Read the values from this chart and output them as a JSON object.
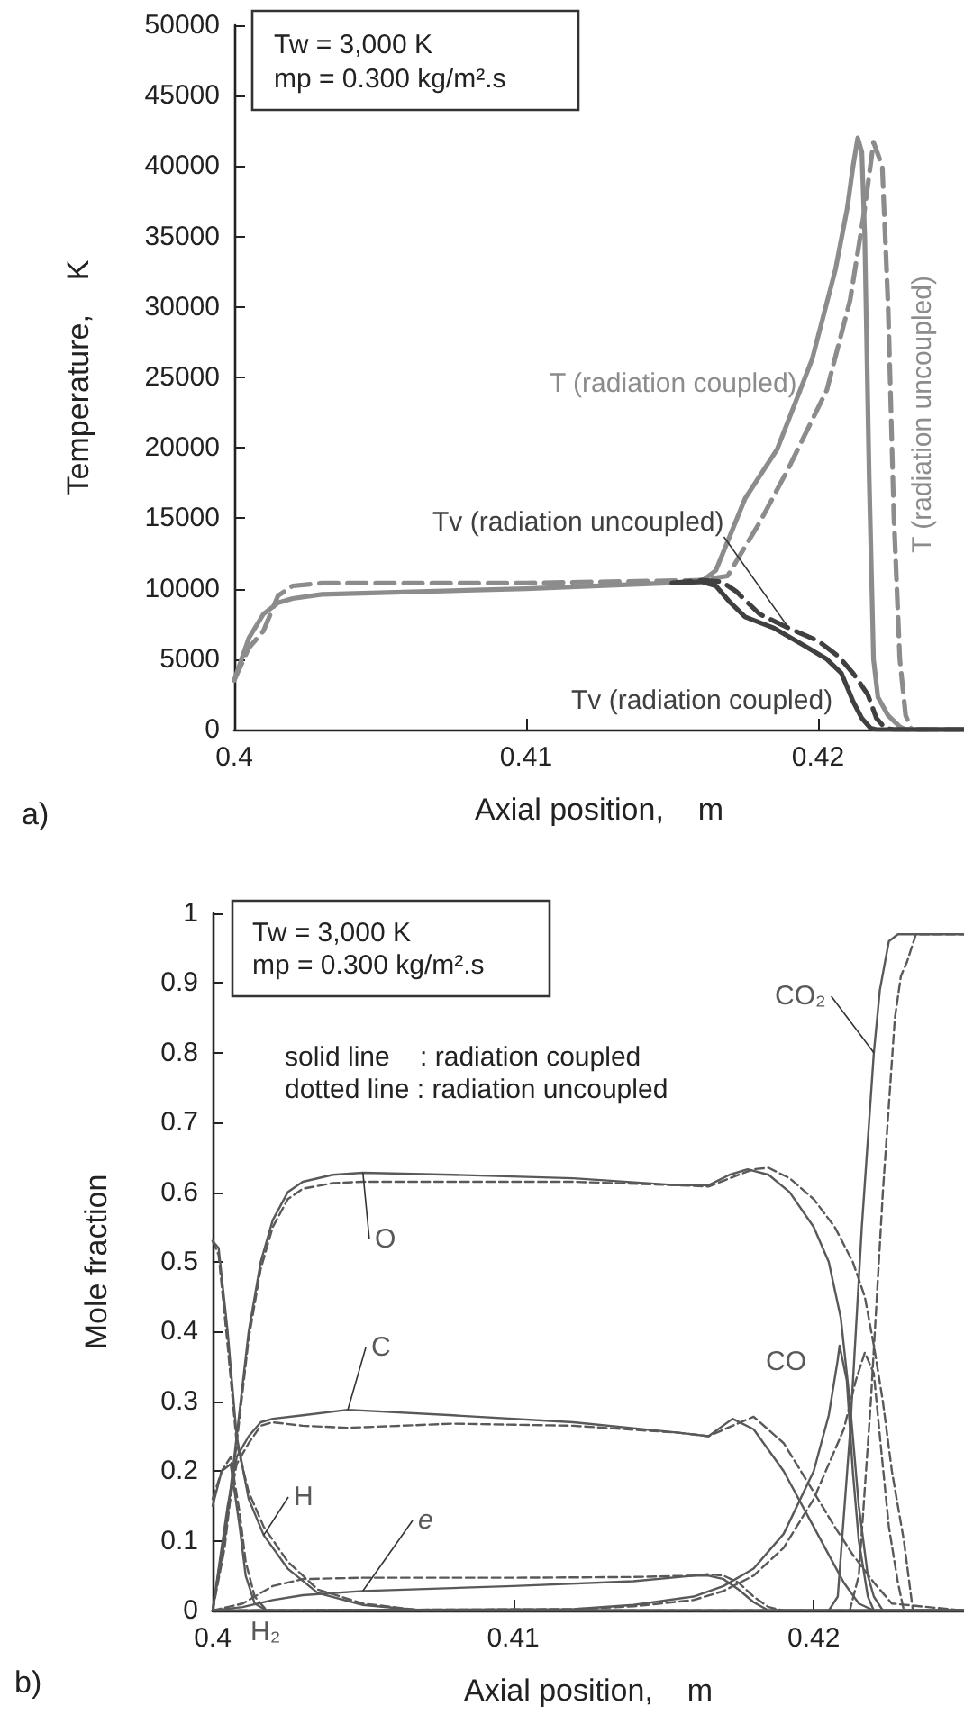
{
  "chart_data": [
    {
      "type": "line",
      "xlabel": "Axial position,    m",
      "ylabel": "Temperature,    K",
      "xlim": [
        0.4,
        0.425
      ],
      "xticks": [
        0.4,
        0.41,
        0.42
      ],
      "ylim": [
        0,
        50000
      ],
      "yticks": [
        0,
        5000,
        10000,
        15000,
        20000,
        25000,
        30000,
        35000,
        40000,
        45000,
        50000
      ],
      "grid": false,
      "legend": false,
      "annotations": [
        "Tw = 3,000 K",
        "mp = 0.300 kg/m².s",
        "a)"
      ],
      "series": [
        {
          "name": "T (radiation uncoupled)",
          "color": "#8c8c8c",
          "line_style": "dashed",
          "x": [
            0.4,
            0.4005,
            0.401,
            0.4015,
            0.402,
            0.403,
            0.41,
            0.416,
            0.4169,
            0.418,
            0.419,
            0.4203,
            0.4211,
            0.4216,
            0.4219,
            0.4222,
            0.4224,
            0.4226,
            0.4228,
            0.423,
            0.4232,
            0.425
          ],
          "values": [
            3500,
            5800,
            7000,
            9500,
            10200,
            10400,
            10400,
            10600,
            10900,
            14700,
            18600,
            24100,
            30500,
            37000,
            41700,
            40000,
            30000,
            15000,
            5000,
            1000,
            0,
            0
          ]
        },
        {
          "name": "T (radiation coupled)",
          "color": "#8c8c8c",
          "line_style": "solid",
          "x": [
            0.4,
            0.4005,
            0.401,
            0.4015,
            0.402,
            0.403,
            0.41,
            0.416,
            0.4165,
            0.4175,
            0.4186,
            0.4198,
            0.4206,
            0.421,
            0.4212,
            0.42136,
            0.4215,
            0.4216,
            0.42175,
            0.4219,
            0.42205,
            0.4224,
            0.4228,
            0.423,
            0.425
          ],
          "values": [
            3500,
            6500,
            8200,
            9000,
            9300,
            9600,
            10000,
            10500,
            11300,
            16400,
            19900,
            26300,
            32700,
            37000,
            40000,
            42000,
            41000,
            35000,
            18000,
            5000,
            2300,
            1000,
            200,
            0,
            0
          ]
        },
        {
          "name": "Tv (radiation coupled)",
          "color": "#404040",
          "line_style": "solid",
          "x": [
            0.415,
            0.416,
            0.4165,
            0.417,
            0.4175,
            0.4185,
            0.4195,
            0.4203,
            0.4208,
            0.4212,
            0.4215,
            0.4218,
            0.422,
            0.425
          ],
          "values": [
            10400,
            10500,
            10200,
            9000,
            8000,
            7200,
            6000,
            5000,
            4000,
            2000,
            800,
            100,
            0,
            0
          ]
        },
        {
          "name": "Tv (radiation uncoupled)",
          "color": "#404040",
          "line_style": "dashed",
          "x": [
            0.415,
            0.416,
            0.4167,
            0.4172,
            0.418,
            0.419,
            0.42,
            0.4207,
            0.4212,
            0.4217,
            0.422,
            0.4223,
            0.4226,
            0.425
          ],
          "values": [
            10400,
            10600,
            10500,
            9800,
            8200,
            7200,
            6300,
            5200,
            4000,
            2500,
            800,
            100,
            0,
            0
          ]
        }
      ]
    },
    {
      "type": "line",
      "xlabel": "Axial position,    m",
      "ylabel": "Mole fraction",
      "xlim": [
        0.4,
        0.425
      ],
      "xticks": [
        0.4,
        0.41,
        0.42
      ],
      "ylim": [
        0,
        1
      ],
      "yticks": [
        0,
        0.1,
        0.2,
        0.3,
        0.4,
        0.5,
        0.6,
        0.7,
        0.8,
        0.9,
        1
      ],
      "grid": false,
      "legend": false,
      "annotations": [
        "Tw = 3,000 K",
        "mp = 0.300 kg/m².s",
        "solid line    : radiation coupled",
        "dotted line : radiation uncoupled",
        "b)"
      ],
      "series": [
        {
          "name": "O",
          "color": "#595959",
          "line_style": "solid",
          "x": [
            0.4,
            0.4004,
            0.4008,
            0.4012,
            0.4016,
            0.402,
            0.4025,
            0.403,
            0.404,
            0.405,
            0.408,
            0.412,
            0.4155,
            0.4165,
            0.4172,
            0.4178,
            0.4185,
            0.4192,
            0.42,
            0.4205,
            0.4209,
            0.4212,
            0.4215,
            0.4218,
            0.422,
            0.4223,
            0.425
          ],
          "values": [
            0,
            0.1,
            0.25,
            0.4,
            0.5,
            0.56,
            0.6,
            0.615,
            0.625,
            0.628,
            0.625,
            0.62,
            0.61,
            0.61,
            0.625,
            0.633,
            0.625,
            0.6,
            0.55,
            0.5,
            0.42,
            0.3,
            0.15,
            0.05,
            0.02,
            0,
            0
          ]
        },
        {
          "color": "#595959",
          "line_style": "dashed",
          "x": [
            0.4,
            0.4004,
            0.4008,
            0.4012,
            0.4016,
            0.402,
            0.4025,
            0.403,
            0.404,
            0.405,
            0.408,
            0.412,
            0.4155,
            0.4165,
            0.4172,
            0.418,
            0.4185,
            0.4192,
            0.42,
            0.4207,
            0.4213,
            0.4217,
            0.422,
            0.4223,
            0.4226,
            0.423,
            0.4233,
            0.425
          ],
          "values": [
            0,
            0.09,
            0.24,
            0.39,
            0.49,
            0.55,
            0.59,
            0.605,
            0.613,
            0.615,
            0.615,
            0.615,
            0.61,
            0.608,
            0.62,
            0.633,
            0.635,
            0.62,
            0.59,
            0.55,
            0.5,
            0.45,
            0.38,
            0.3,
            0.2,
            0.1,
            0,
            0
          ]
        },
        {
          "name": "C",
          "color": "#595959",
          "line_style": "solid",
          "x": [
            0.4,
            0.4005,
            0.4008,
            0.4012,
            0.4016,
            0.402,
            0.403,
            0.4045,
            0.408,
            0.412,
            0.4155,
            0.4165,
            0.4173,
            0.418,
            0.419,
            0.42,
            0.4205,
            0.421,
            0.4215,
            0.422,
            0.425
          ],
          "values": [
            0,
            0.15,
            0.22,
            0.25,
            0.27,
            0.275,
            0.28,
            0.288,
            0.28,
            0.27,
            0.255,
            0.25,
            0.275,
            0.26,
            0.2,
            0.12,
            0.08,
            0.04,
            0.01,
            0,
            0
          ]
        },
        {
          "color": "#595959",
          "line_style": "dashed",
          "x": [
            0.4,
            0.4005,
            0.4008,
            0.4012,
            0.4016,
            0.402,
            0.403,
            0.4045,
            0.408,
            0.412,
            0.4155,
            0.4165,
            0.4173,
            0.418,
            0.419,
            0.42,
            0.4207,
            0.4213,
            0.422,
            0.4226,
            0.425
          ],
          "values": [
            0,
            0.14,
            0.21,
            0.24,
            0.265,
            0.27,
            0.265,
            0.262,
            0.268,
            0.265,
            0.255,
            0.25,
            0.265,
            0.278,
            0.24,
            0.17,
            0.12,
            0.08,
            0.04,
            0.01,
            0
          ]
        },
        {
          "name": "CO",
          "color": "#595959",
          "line_style": "solid",
          "x": [
            0.4,
            0.412,
            0.414,
            0.416,
            0.417,
            0.418,
            0.419,
            0.42,
            0.4205,
            0.4208,
            0.42086,
            0.4211,
            0.4213,
            0.4215,
            0.4218,
            0.422,
            0.425
          ],
          "values": [
            0,
            0.002,
            0.008,
            0.02,
            0.035,
            0.06,
            0.11,
            0.2,
            0.28,
            0.36,
            0.38,
            0.33,
            0.2,
            0.1,
            0.02,
            0,
            0
          ]
        },
        {
          "color": "#595959",
          "line_style": "dashed",
          "x": [
            0.4,
            0.412,
            0.414,
            0.416,
            0.417,
            0.418,
            0.419,
            0.42,
            0.421,
            0.4214,
            0.4217,
            0.422,
            0.4222,
            0.4225,
            0.4228,
            0.423,
            0.425
          ],
          "values": [
            0,
            0.002,
            0.006,
            0.015,
            0.028,
            0.05,
            0.09,
            0.16,
            0.26,
            0.33,
            0.37,
            0.34,
            0.25,
            0.12,
            0.04,
            0,
            0
          ]
        },
        {
          "name": "CO₂",
          "color": "#595959",
          "line_style": "solid",
          "x": [
            0.4,
            0.4205,
            0.4208,
            0.4212,
            0.4216,
            0.422,
            0.4222,
            0.4225,
            0.4228,
            0.425
          ],
          "values": [
            0,
            0,
            0.02,
            0.25,
            0.55,
            0.8,
            0.89,
            0.96,
            0.97,
            0.97
          ]
        },
        {
          "color": "#595959",
          "line_style": "dashed",
          "x": [
            0.4,
            0.4212,
            0.4215,
            0.4219,
            0.4223,
            0.4227,
            0.4229,
            0.4231,
            0.4234,
            0.425
          ],
          "values": [
            0,
            0,
            0.05,
            0.3,
            0.6,
            0.85,
            0.91,
            0.93,
            0.97,
            0.97
          ]
        },
        {
          "name": "H",
          "color": "#595959",
          "line_style": "solid",
          "x": [
            0.4,
            0.4002,
            0.4005,
            0.4008,
            0.4012,
            0.4017,
            0.4025,
            0.4035,
            0.405,
            0.407,
            0.425
          ],
          "values": [
            0.53,
            0.52,
            0.4,
            0.25,
            0.16,
            0.108,
            0.06,
            0.025,
            0.008,
            0,
            0
          ]
        },
        {
          "color": "#595959",
          "line_style": "dashed",
          "x": [
            0.4,
            0.4002,
            0.4005,
            0.4008,
            0.4012,
            0.4017,
            0.4025,
            0.4035,
            0.405,
            0.407,
            0.425
          ],
          "values": [
            0.53,
            0.51,
            0.38,
            0.24,
            0.17,
            0.12,
            0.07,
            0.03,
            0.01,
            0,
            0
          ]
        },
        {
          "name": "H₂",
          "color": "#595959",
          "line_style": "solid",
          "x": [
            0.4,
            0.4003,
            0.4006,
            0.4009,
            0.4011,
            0.4014,
            0.4018,
            0.425
          ],
          "values": [
            0.15,
            0.2,
            0.21,
            0.12,
            0.05,
            0.01,
            0,
            0
          ]
        },
        {
          "color": "#595959",
          "line_style": "dashed",
          "x": [
            0.4,
            0.4003,
            0.4006,
            0.4009,
            0.4011,
            0.4014,
            0.4018,
            0.425
          ],
          "values": [
            0.16,
            0.2,
            0.22,
            0.14,
            0.07,
            0.02,
            0,
            0
          ]
        },
        {
          "name": "e",
          "color": "#595959",
          "line_style": "solid",
          "x": [
            0.4,
            0.401,
            0.402,
            0.403,
            0.405,
            0.41,
            0.414,
            0.416,
            0.4165,
            0.417,
            0.4175,
            0.418,
            0.4185,
            0.425
          ],
          "values": [
            0,
            0.005,
            0.015,
            0.022,
            0.028,
            0.035,
            0.042,
            0.05,
            0.05,
            0.045,
            0.03,
            0.012,
            0,
            0
          ]
        },
        {
          "color": "#595959",
          "line_style": "dashed",
          "x": [
            0.4,
            0.401,
            0.402,
            0.403,
            0.405,
            0.41,
            0.414,
            0.416,
            0.4165,
            0.417,
            0.4175,
            0.418,
            0.4185,
            0.419,
            0.425
          ],
          "values": [
            0,
            0.01,
            0.035,
            0.045,
            0.047,
            0.047,
            0.048,
            0.05,
            0.052,
            0.05,
            0.04,
            0.02,
            0.005,
            0,
            0
          ]
        }
      ]
    }
  ]
}
